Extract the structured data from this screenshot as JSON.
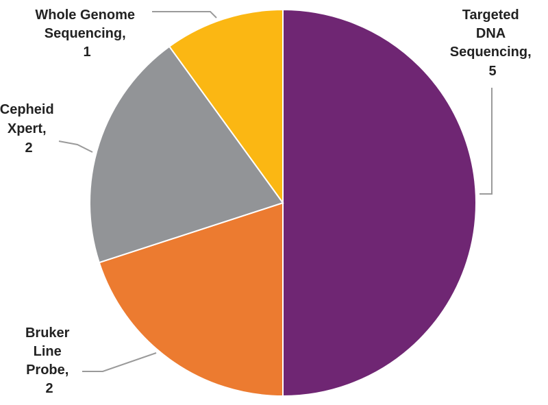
{
  "chart_data": {
    "type": "pie",
    "title": "",
    "slices": [
      {
        "label": [
          "Targeted",
          "DNA",
          "Sequencing,",
          "5"
        ],
        "value": 5,
        "color": "#6f2673"
      },
      {
        "label": [
          "Bruker",
          "Line",
          "Probe,",
          "2"
        ],
        "value": 2,
        "color": "#ec7b30"
      },
      {
        "label": [
          "Cepheid",
          "Xpert,",
          "2"
        ],
        "value": 2,
        "color": "#929497"
      },
      {
        "label": [
          "Whole Genome",
          "Sequencing,",
          "1"
        ],
        "value": 1,
        "color": "#fbb713"
      }
    ],
    "start": "top",
    "direction": "clockwise"
  }
}
